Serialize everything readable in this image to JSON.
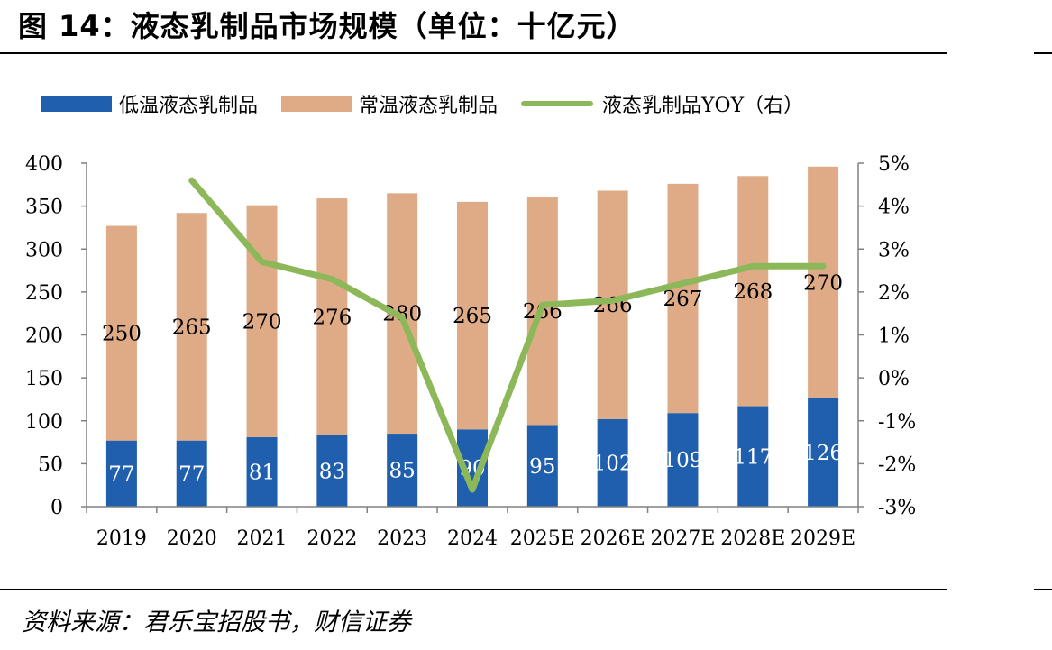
{
  "header": {
    "title": "图 14：液态乳制品市场规模（单位：十亿元）"
  },
  "legend": {
    "low_temp": "低温液态乳制品",
    "ambient": "常温液态乳制品",
    "yoy": "液态乳制品YOY（右）"
  },
  "footer": {
    "source": "资料来源：君乐宝招股书，财信证券"
  },
  "colors": {
    "low_temp": "#1f5fae",
    "ambient": "#dfab86",
    "yoy": "#8db85a"
  },
  "chart_data": {
    "type": "bar",
    "stacked": true,
    "categories": [
      "2019",
      "2020",
      "2021",
      "2022",
      "2023",
      "2024",
      "2025E",
      "2026E",
      "2027E",
      "2028E",
      "2029E"
    ],
    "series": [
      {
        "name": "低温液态乳制品",
        "type": "bar",
        "axis": "left",
        "values": [
          77,
          77,
          81,
          83,
          85,
          90,
          95,
          102,
          109,
          117,
          126
        ]
      },
      {
        "name": "常温液态乳制品",
        "type": "bar",
        "axis": "left",
        "values": [
          250,
          265,
          270,
          276,
          280,
          265,
          266,
          266,
          267,
          268,
          270
        ]
      },
      {
        "name": "液态乳制品YOY（右）",
        "type": "line",
        "axis": "right",
        "values": [
          null,
          4.6,
          2.7,
          2.3,
          1.4,
          -2.6,
          1.7,
          1.8,
          2.2,
          2.6,
          2.6
        ]
      }
    ],
    "left_axis": {
      "ylim": [
        0,
        400
      ],
      "ticks": [
        "0",
        "50",
        "100",
        "150",
        "200",
        "250",
        "300",
        "350",
        "400"
      ]
    },
    "right_axis": {
      "ylim": [
        -3,
        5
      ],
      "ticks": [
        "-3%",
        "-2%",
        "-1%",
        "0%",
        "1%",
        "2%",
        "3%",
        "4%",
        "5%"
      ]
    },
    "grid": false,
    "legend_position": "top"
  }
}
